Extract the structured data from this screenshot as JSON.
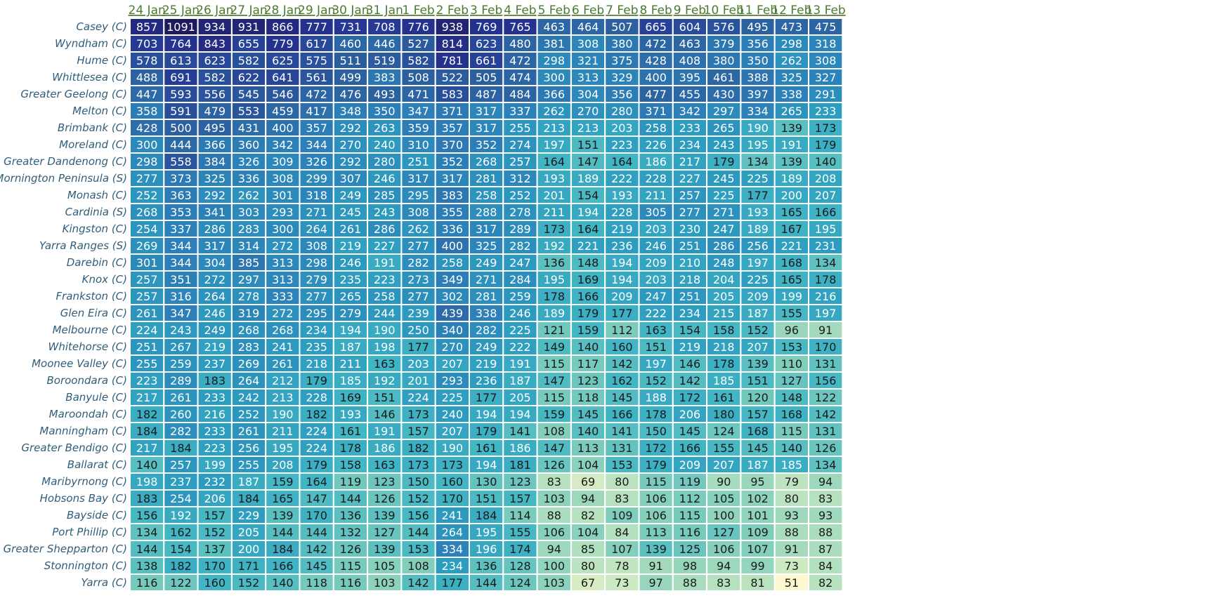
{
  "colors": {
    "scale": [
      "#fdf7cf",
      "#c9e8c0",
      "#7fcdbb",
      "#41b6c4",
      "#2c9cbf",
      "#2c7fb8",
      "#2c5f9e",
      "#253494",
      "#1f1a5e"
    ],
    "column_label": "#4a7a2e",
    "row_label": "#2f5d7c",
    "text_dark": "#1a1a1a",
    "text_light": "#ffffff"
  },
  "chart_data": {
    "type": "heatmap",
    "color_range": [
      51,
      1091
    ],
    "columns": [
      "24 Jan",
      "25 Jan",
      "26 Jan",
      "27 Jan",
      "28 Jan",
      "29 Jan",
      "30 Jan",
      "31 Jan",
      "1 Feb",
      "2 Feb",
      "3 Feb",
      "4 Feb",
      "5 Feb",
      "6 Feb",
      "7 Feb",
      "8 Feb",
      "9 Feb",
      "10 Feb",
      "11 Feb",
      "12 Feb",
      "13 Feb"
    ],
    "rows": [
      "Casey (C)",
      "Wyndham (C)",
      "Hume (C)",
      "Whittlesea (C)",
      "Greater Geelong (C)",
      "Melton (C)",
      "Brimbank (C)",
      "Moreland (C)",
      "Greater Dandenong (C)",
      "Mornington Peninsula (S)",
      "Monash (C)",
      "Cardinia (S)",
      "Kingston (C)",
      "Yarra Ranges (S)",
      "Darebin (C)",
      "Knox (C)",
      "Frankston (C)",
      "Glen Eira (C)",
      "Melbourne (C)",
      "Whitehorse (C)",
      "Moonee Valley (C)",
      "Boroondara (C)",
      "Banyule (C)",
      "Maroondah (C)",
      "Manningham (C)",
      "Greater Bendigo (C)",
      "Ballarat (C)",
      "Maribyrnong (C)",
      "Hobsons Bay (C)",
      "Bayside (C)",
      "Port Phillip (C)",
      "Greater Shepparton (C)",
      "Stonnington (C)",
      "Yarra (C)"
    ],
    "values": [
      [
        857,
        1091,
        934,
        931,
        866,
        777,
        731,
        708,
        776,
        938,
        769,
        765,
        463,
        464,
        507,
        665,
        604,
        576,
        495,
        473,
        475
      ],
      [
        703,
        764,
        843,
        655,
        779,
        617,
        460,
        446,
        527,
        814,
        623,
        480,
        381,
        308,
        380,
        472,
        463,
        379,
        356,
        298,
        318
      ],
      [
        578,
        613,
        623,
        582,
        625,
        575,
        511,
        519,
        582,
        781,
        661,
        472,
        298,
        321,
        375,
        428,
        408,
        380,
        350,
        262,
        308
      ],
      [
        488,
        691,
        582,
        622,
        641,
        561,
        499,
        383,
        508,
        522,
        505,
        474,
        300,
        313,
        329,
        400,
        395,
        461,
        388,
        325,
        327
      ],
      [
        447,
        593,
        556,
        545,
        546,
        472,
        476,
        493,
        471,
        583,
        487,
        484,
        366,
        304,
        356,
        477,
        455,
        430,
        397,
        338,
        291
      ],
      [
        358,
        591,
        479,
        553,
        459,
        417,
        348,
        350,
        347,
        371,
        317,
        337,
        262,
        270,
        280,
        371,
        342,
        297,
        334,
        265,
        233
      ],
      [
        428,
        500,
        495,
        431,
        400,
        357,
        292,
        263,
        359,
        357,
        317,
        255,
        213,
        213,
        203,
        258,
        233,
        265,
        190,
        139,
        173
      ],
      [
        300,
        444,
        366,
        360,
        342,
        344,
        270,
        240,
        310,
        370,
        352,
        274,
        197,
        151,
        223,
        226,
        234,
        243,
        195,
        191,
        179
      ],
      [
        298,
        558,
        384,
        326,
        309,
        326,
        292,
        280,
        251,
        352,
        268,
        257,
        164,
        147,
        164,
        186,
        217,
        179,
        134,
        139,
        140
      ],
      [
        277,
        373,
        325,
        336,
        308,
        299,
        307,
        246,
        317,
        317,
        281,
        312,
        193,
        189,
        222,
        228,
        227,
        245,
        225,
        189,
        208
      ],
      [
        252,
        363,
        292,
        262,
        301,
        318,
        249,
        285,
        295,
        383,
        258,
        252,
        201,
        154,
        193,
        211,
        257,
        225,
        177,
        200,
        207
      ],
      [
        268,
        353,
        341,
        303,
        293,
        271,
        245,
        243,
        308,
        355,
        288,
        278,
        211,
        194,
        228,
        305,
        277,
        271,
        193,
        165,
        166
      ],
      [
        254,
        337,
        286,
        283,
        300,
        264,
        261,
        286,
        262,
        336,
        317,
        289,
        173,
        164,
        219,
        203,
        230,
        247,
        189,
        167,
        195
      ],
      [
        269,
        344,
        317,
        314,
        272,
        308,
        219,
        227,
        277,
        400,
        325,
        282,
        192,
        221,
        236,
        246,
        251,
        286,
        256,
        221,
        231
      ],
      [
        301,
        344,
        304,
        385,
        313,
        298,
        246,
        191,
        282,
        258,
        249,
        247,
        136,
        148,
        194,
        209,
        210,
        248,
        197,
        168,
        134
      ],
      [
        257,
        351,
        272,
        297,
        313,
        279,
        235,
        223,
        273,
        349,
        271,
        284,
        195,
        169,
        194,
        203,
        218,
        204,
        225,
        165,
        178
      ],
      [
        257,
        316,
        264,
        278,
        333,
        277,
        265,
        258,
        277,
        302,
        281,
        259,
        178,
        166,
        209,
        247,
        251,
        205,
        209,
        199,
        216
      ],
      [
        261,
        347,
        246,
        319,
        272,
        295,
        279,
        244,
        239,
        439,
        338,
        246,
        189,
        179,
        177,
        222,
        234,
        215,
        187,
        155,
        197
      ],
      [
        224,
        243,
        249,
        268,
        268,
        234,
        194,
        190,
        250,
        340,
        282,
        225,
        121,
        159,
        112,
        163,
        154,
        158,
        152,
        96,
        91
      ],
      [
        251,
        267,
        219,
        283,
        241,
        235,
        187,
        198,
        177,
        270,
        249,
        222,
        149,
        140,
        160,
        151,
        219,
        218,
        207,
        153,
        170
      ],
      [
        255,
        259,
        237,
        269,
        261,
        218,
        211,
        163,
        203,
        207,
        219,
        191,
        115,
        117,
        142,
        197,
        146,
        178,
        139,
        110,
        131
      ],
      [
        223,
        289,
        183,
        264,
        212,
        179,
        185,
        192,
        201,
        293,
        236,
        187,
        147,
        123,
        162,
        152,
        142,
        185,
        151,
        127,
        156
      ],
      [
        217,
        261,
        233,
        242,
        213,
        228,
        169,
        151,
        224,
        225,
        177,
        205,
        115,
        118,
        145,
        188,
        172,
        161,
        120,
        148,
        122
      ],
      [
        182,
        260,
        216,
        252,
        190,
        182,
        193,
        146,
        173,
        240,
        194,
        194,
        159,
        145,
        166,
        178,
        206,
        180,
        157,
        168,
        142
      ],
      [
        184,
        282,
        233,
        261,
        211,
        224,
        161,
        191,
        157,
        207,
        179,
        141,
        108,
        140,
        141,
        150,
        145,
        124,
        168,
        115,
        131
      ],
      [
        217,
        184,
        223,
        256,
        195,
        224,
        178,
        186,
        182,
        190,
        161,
        186,
        147,
        113,
        131,
        172,
        166,
        155,
        145,
        140,
        126
      ],
      [
        140,
        257,
        199,
        255,
        208,
        179,
        158,
        163,
        173,
        173,
        194,
        181,
        126,
        104,
        153,
        179,
        209,
        207,
        187,
        185,
        134
      ],
      [
        198,
        237,
        232,
        187,
        159,
        164,
        119,
        123,
        150,
        160,
        130,
        123,
        83,
        69,
        80,
        115,
        119,
        90,
        95,
        79,
        94
      ],
      [
        183,
        254,
        206,
        184,
        165,
        147,
        144,
        126,
        152,
        170,
        151,
        157,
        103,
        94,
        83,
        106,
        112,
        105,
        102,
        80,
        83
      ],
      [
        156,
        192,
        157,
        229,
        139,
        170,
        136,
        139,
        156,
        241,
        184,
        114,
        88,
        82,
        109,
        106,
        115,
        100,
        101,
        93,
        93
      ],
      [
        134,
        162,
        152,
        205,
        144,
        144,
        132,
        127,
        144,
        264,
        195,
        155,
        106,
        104,
        84,
        113,
        116,
        127,
        109,
        88,
        88
      ],
      [
        144,
        154,
        137,
        200,
        184,
        142,
        126,
        139,
        153,
        334,
        196,
        174,
        94,
        85,
        107,
        139,
        125,
        106,
        107,
        91,
        87
      ],
      [
        138,
        182,
        170,
        171,
        166,
        145,
        115,
        105,
        108,
        234,
        136,
        128,
        100,
        80,
        78,
        91,
        98,
        94,
        99,
        73,
        84
      ],
      [
        116,
        122,
        160,
        152,
        140,
        118,
        116,
        103,
        142,
        177,
        144,
        124,
        103,
        67,
        73,
        97,
        88,
        83,
        81,
        51,
        82
      ]
    ]
  }
}
